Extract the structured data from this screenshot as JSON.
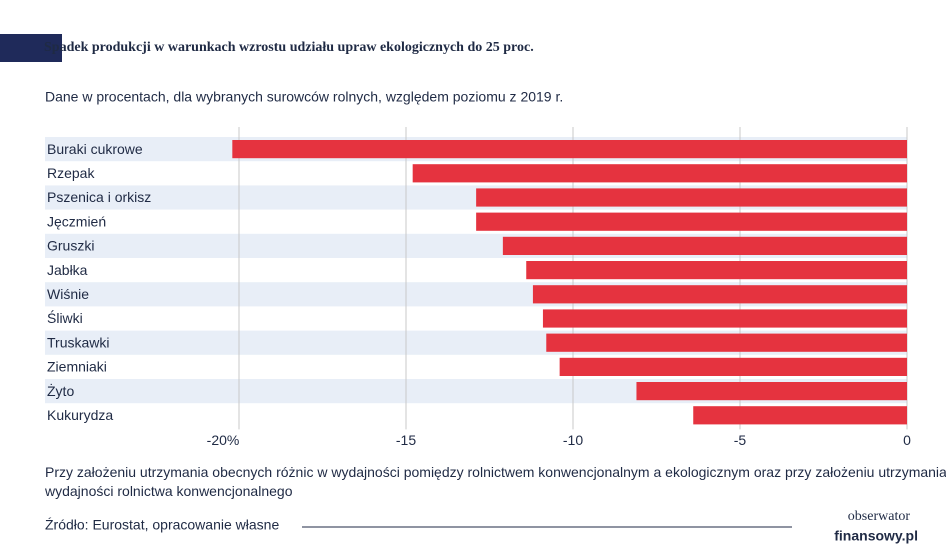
{
  "chart_data": {
    "type": "barh",
    "title": "Spadek produkcji w warunkach wzrostu udziału upraw ekologicznych do 25 proc.",
    "subtitle": "Dane w procentach, dla wybranych surowców rolnych, względem poziomu z 2019 r.",
    "categories": [
      "Buraki cukrowe",
      "Rzepak",
      "Pszenica i orkisz",
      "Jęczmień",
      "Gruszki",
      "Jabłka",
      "Wiśnie",
      "Śliwki",
      "Truskawki",
      "Ziemniaki",
      "Żyto",
      "Kukurydza"
    ],
    "values": [
      -20.2,
      -14.8,
      -12.9,
      -12.9,
      -12.1,
      -11.4,
      -11.2,
      -10.9,
      -10.8,
      -10.4,
      -8.1,
      -6.4
    ],
    "color": "#e5333f",
    "stripe_color": "#e8eef7",
    "xlim": [
      -20,
      0
    ],
    "xticks": [
      {
        "value": -20,
        "label": "-20%"
      },
      -15,
      -10,
      -5,
      0
    ],
    "grid": true,
    "note": "Przy założeniu utrzymania obecnych różnic w wydajności pomiędzy rolnictwem konwencjonalnym a ekologicznym oraz przy założeniu utrzymania dotychczasowej wydajności rolnictwa konwencjonalnego",
    "source": "Źródło: Eurostat, opracowanie własne",
    "logo": [
      "obserwator",
      "finansowy.pl"
    ]
  }
}
